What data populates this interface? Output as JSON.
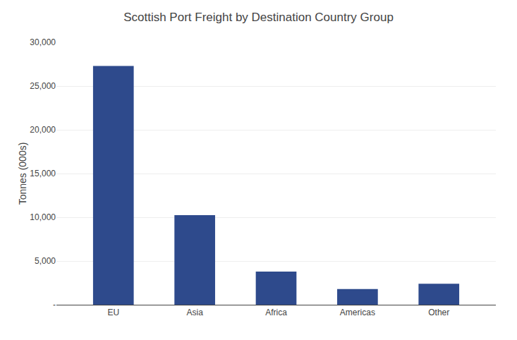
{
  "chart_data": {
    "type": "bar",
    "title": "Scottish Port Freight by Destination Country Group",
    "categories": [
      "EU",
      "Asia",
      "Africa",
      "Americas",
      "Other"
    ],
    "values": [
      27300,
      10250,
      3800,
      1800,
      2400
    ],
    "color": "#2E4A8C",
    "ylabel": "Tonnes (000s)",
    "ylim": [
      0,
      30000
    ],
    "yticks": [
      {
        "value": 0,
        "label": "-"
      },
      {
        "value": 5000,
        "label": "5,000"
      },
      {
        "value": 10000,
        "label": "10,000"
      },
      {
        "value": 15000,
        "label": "15,000"
      },
      {
        "value": 20000,
        "label": "20,000"
      },
      {
        "value": 25000,
        "label": "25,000"
      },
      {
        "value": 30000,
        "label": "30,000"
      }
    ],
    "grid": true
  }
}
